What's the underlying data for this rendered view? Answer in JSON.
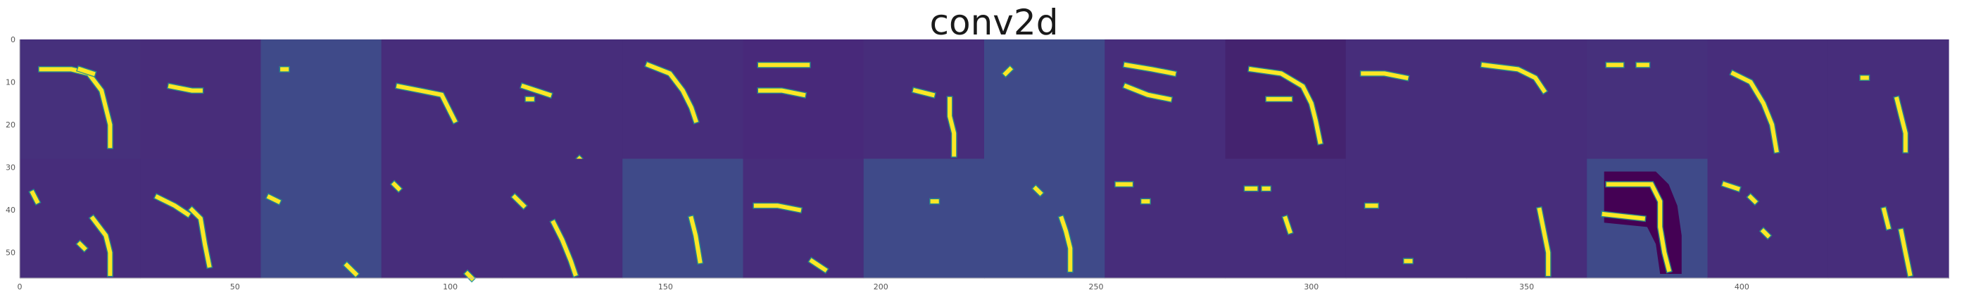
{
  "chart_data": {
    "type": "heatmap",
    "title": "conv2d",
    "xlabel": "",
    "ylabel": "",
    "xlim": [
      0,
      448
    ],
    "ylim": [
      56,
      0
    ],
    "grid": false,
    "colormap": "viridis",
    "colors": {
      "background_default": "#472d7b",
      "low": "#440154",
      "mid": "#21918c",
      "high": "#fde725"
    },
    "layout": {
      "rows": 2,
      "cols": 16,
      "tile_size": 28
    },
    "x_ticks": [
      0,
      50,
      100,
      150,
      200,
      250,
      300,
      350,
      400
    ],
    "y_ticks": [
      0,
      10,
      20,
      30,
      40,
      50
    ],
    "tiles": [
      {
        "bg": "#46307c",
        "strokes": [
          [
            [
              5,
              7
            ],
            [
              12,
              7
            ],
            [
              16,
              8
            ],
            [
              19,
              12
            ],
            [
              20,
              16
            ],
            [
              21,
              20
            ],
            [
              21,
              25
            ]
          ],
          [
            [
              14,
              7
            ],
            [
              17,
              8
            ]
          ]
        ]
      },
      {
        "bg": "#482d7a",
        "strokes": [
          [
            [
              7,
              11
            ],
            [
              12,
              12
            ],
            [
              14,
              12
            ]
          ]
        ]
      },
      {
        "bg": "#3f4a89",
        "strokes": [
          [
            [
              5,
              7
            ],
            [
              6,
              7
            ]
          ]
        ]
      },
      {
        "bg": "#472d7b",
        "strokes": [
          [
            [
              4,
              11
            ],
            [
              9,
              12
            ],
            [
              14,
              13
            ],
            [
              15,
              15
            ],
            [
              17,
              19
            ]
          ]
        ]
      },
      {
        "bg": "#472d7b",
        "strokes": [
          [
            [
              5,
              11
            ],
            [
              8,
              12
            ],
            [
              11,
              13
            ]
          ],
          [
            [
              18,
              28
            ],
            [
              19,
              29
            ]
          ],
          [
            [
              6,
              14
            ],
            [
              7,
              14
            ]
          ]
        ]
      },
      {
        "bg": "#472d7b",
        "strokes": [
          [
            [
              6,
              6
            ],
            [
              11,
              8
            ],
            [
              14,
              12
            ],
            [
              16,
              16
            ],
            [
              17,
              19
            ]
          ]
        ]
      },
      {
        "bg": "#48297a",
        "strokes": [
          [
            [
              4,
              6
            ],
            [
              10,
              6
            ],
            [
              15,
              6
            ]
          ],
          [
            [
              4,
              12
            ],
            [
              9,
              12
            ],
            [
              14,
              13
            ]
          ]
        ]
      },
      {
        "bg": "#472d7b",
        "strokes": [
          [
            [
              20,
              14
            ],
            [
              20,
              18
            ],
            [
              21,
              22
            ],
            [
              21,
              27
            ]
          ],
          [
            [
              12,
              12
            ],
            [
              16,
              13
            ]
          ]
        ]
      },
      {
        "bg": "#3f4a89",
        "strokes": [
          [
            [
              5,
              8
            ],
            [
              6,
              7
            ]
          ]
        ]
      },
      {
        "bg": "#472d7b",
        "strokes": [
          [
            [
              5,
              6
            ],
            [
              11,
              7
            ],
            [
              16,
              8
            ]
          ],
          [
            [
              5,
              11
            ],
            [
              10,
              13
            ],
            [
              15,
              14
            ]
          ]
        ]
      },
      {
        "bg": "#44236f",
        "strokes": [
          [
            [
              6,
              7
            ],
            [
              13,
              8
            ],
            [
              18,
              11
            ],
            [
              20,
              15
            ],
            [
              21,
              19
            ],
            [
              22,
              24
            ]
          ],
          [
            [
              10,
              14
            ],
            [
              15,
              14
            ]
          ]
        ]
      },
      {
        "bg": "#472d7b",
        "strokes": [
          [
            [
              4,
              8
            ],
            [
              9,
              8
            ],
            [
              14,
              9
            ]
          ]
        ]
      },
      {
        "bg": "#472d7b",
        "strokes": [
          [
            [
              4,
              6
            ],
            [
              12,
              7
            ],
            [
              16,
              9
            ],
            [
              18,
              12
            ]
          ]
        ]
      },
      {
        "bg": "#46307c",
        "strokes": [
          [
            [
              5,
              6
            ],
            [
              8,
              6
            ]
          ],
          [
            [
              12,
              6
            ],
            [
              14,
              6
            ]
          ]
        ]
      },
      {
        "bg": "#472d7b",
        "strokes": [
          [
            [
              6,
              8
            ],
            [
              10,
              10
            ],
            [
              13,
              15
            ],
            [
              15,
              20
            ],
            [
              16,
              26
            ]
          ]
        ]
      },
      {
        "bg": "#472d7b",
        "strokes": [
          [
            [
              16,
              14
            ],
            [
              17,
              18
            ],
            [
              18,
              22
            ],
            [
              18,
              26
            ]
          ],
          [
            [
              8,
              9
            ],
            [
              9,
              9
            ]
          ]
        ]
      },
      {
        "bg": "#472d7b",
        "strokes": [
          [
            [
              3,
              8
            ],
            [
              4,
              10
            ]
          ],
          [
            [
              17,
              14
            ],
            [
              20,
              18
            ],
            [
              21,
              22
            ],
            [
              21,
              27
            ]
          ],
          [
            [
              14,
              20
            ],
            [
              15,
              21
            ]
          ]
        ]
      },
      {
        "bg": "#472d7b",
        "strokes": [
          [
            [
              4,
              9
            ],
            [
              8,
              11
            ],
            [
              11,
              13
            ]
          ],
          [
            [
              12,
              12
            ],
            [
              14,
              14
            ],
            [
              15,
              20
            ],
            [
              16,
              25
            ]
          ]
        ]
      },
      {
        "bg": "#3f4a89",
        "strokes": [
          [
            [
              2,
              9
            ],
            [
              4,
              10
            ]
          ],
          [
            [
              20,
              25
            ],
            [
              22,
              27
            ]
          ]
        ]
      },
      {
        "bg": "#472d7b",
        "strokes": [
          [
            [
              3,
              6
            ],
            [
              4,
              7
            ]
          ],
          [
            [
              20,
              27
            ],
            [
              21,
              28
            ]
          ]
        ]
      },
      {
        "bg": "#472d7b",
        "strokes": [
          [
            [
              3,
              9
            ],
            [
              5,
              11
            ]
          ],
          [
            [
              12,
              15
            ],
            [
              14,
              19
            ],
            [
              16,
              24
            ],
            [
              17,
              27
            ]
          ]
        ]
      },
      {
        "bg": "#3f4a89",
        "strokes": [
          [
            [
              16,
              14
            ],
            [
              17,
              18
            ],
            [
              18,
              24
            ]
          ]
        ]
      },
      {
        "bg": "#472d7b",
        "strokes": [
          [
            [
              3,
              11
            ],
            [
              8,
              11
            ],
            [
              13,
              12
            ]
          ],
          [
            [
              16,
              24
            ],
            [
              19,
              26
            ]
          ]
        ]
      },
      {
        "bg": "#3f4a89",
        "strokes": [
          [
            [
              16,
              10
            ],
            [
              17,
              10
            ]
          ]
        ]
      },
      {
        "bg": "#3f4a89",
        "strokes": [
          [
            [
              12,
              7
            ],
            [
              13,
              8
            ]
          ],
          [
            [
              18,
              14
            ],
            [
              19,
              17
            ],
            [
              20,
              21
            ],
            [
              20,
              26
            ]
          ]
        ]
      },
      {
        "bg": "#472d7b",
        "strokes": [
          [
            [
              3,
              6
            ],
            [
              6,
              6
            ]
          ],
          [
            [
              9,
              10
            ],
            [
              10,
              10
            ]
          ]
        ]
      },
      {
        "bg": "#472d7b",
        "strokes": [
          [
            [
              5,
              7
            ],
            [
              7,
              7
            ]
          ],
          [
            [
              9,
              7
            ],
            [
              10,
              7
            ]
          ],
          [
            [
              14,
              14
            ],
            [
              15,
              17
            ]
          ]
        ]
      },
      {
        "bg": "#472d7b",
        "strokes": [
          [
            [
              5,
              11
            ],
            [
              7,
              11
            ]
          ],
          [
            [
              14,
              24
            ],
            [
              15,
              24
            ]
          ]
        ]
      },
      {
        "bg": "#472d7b",
        "strokes": [
          [
            [
              17,
              12
            ],
            [
              18,
              17
            ],
            [
              19,
              22
            ],
            [
              19,
              27
            ]
          ]
        ]
      },
      {
        "bg": "#3f4a89",
        "strokes": [
          [
            [
              5,
              6
            ],
            [
              15,
              6
            ],
            [
              17,
              10
            ],
            [
              17,
              16
            ],
            [
              18,
              22
            ],
            [
              19,
              26
            ]
          ],
          [
            [
              4,
              13
            ],
            [
              13,
              14
            ]
          ]
        ],
        "dark_blob": true
      },
      {
        "bg": "#472d7b",
        "strokes": [
          [
            [
              4,
              6
            ],
            [
              7,
              7
            ]
          ],
          [
            [
              10,
              9
            ],
            [
              11,
              10
            ]
          ],
          [
            [
              13,
              17
            ],
            [
              14,
              18
            ]
          ]
        ]
      },
      {
        "bg": "#472d7b",
        "strokes": [
          [
            [
              13,
              12
            ],
            [
              14,
              16
            ]
          ],
          [
            [
              17,
              17
            ],
            [
              18,
              22
            ],
            [
              19,
              27
            ]
          ]
        ]
      }
    ]
  }
}
